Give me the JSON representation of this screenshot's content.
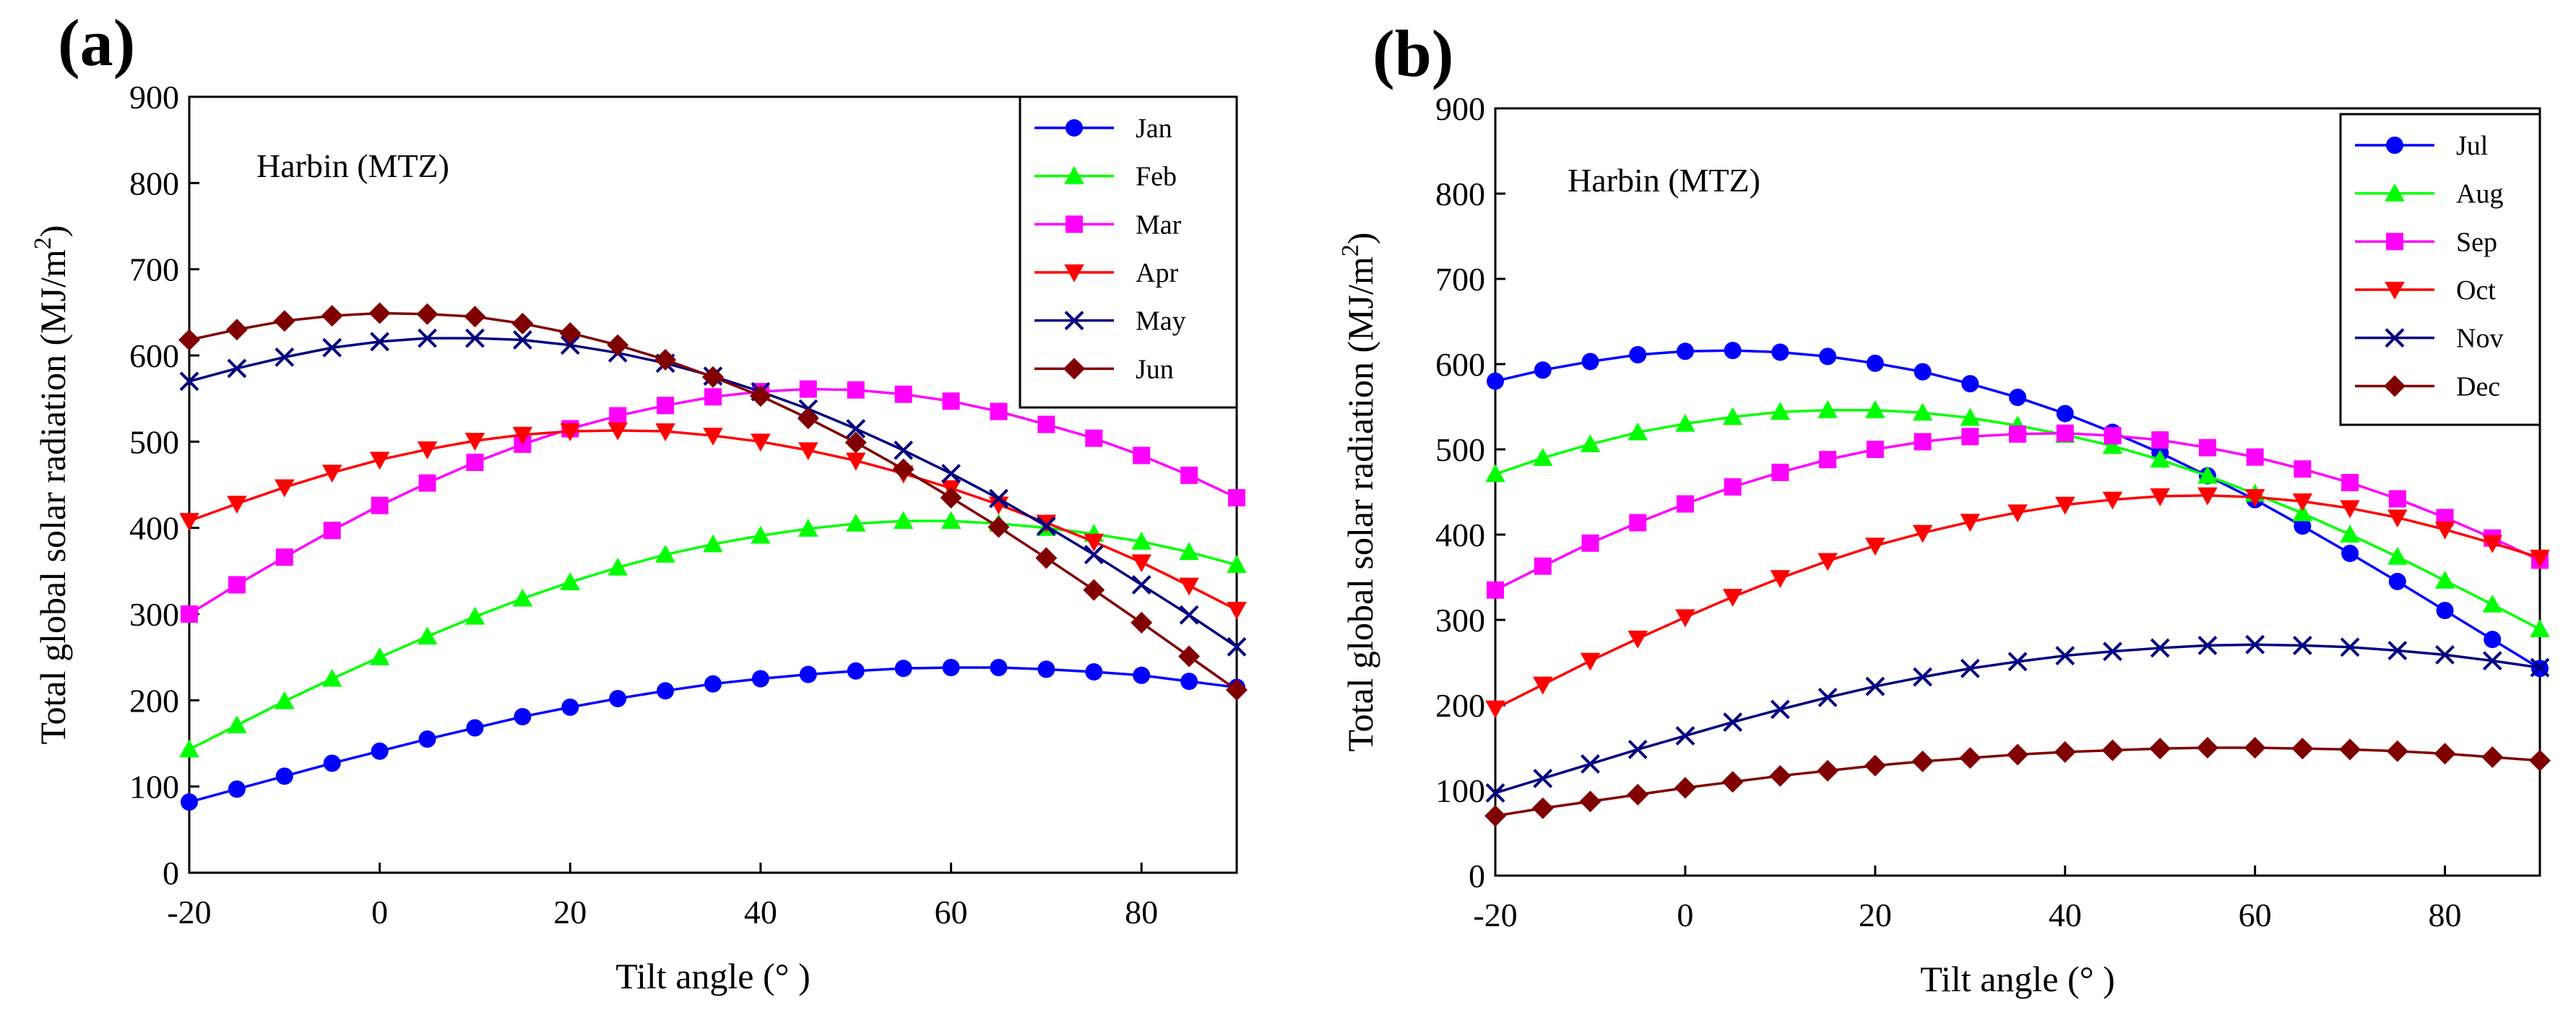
{
  "chart_data": [
    {
      "type": "line",
      "panel_label": "(a)",
      "annotation": "Harbin (MTZ)",
      "xlabel": "Tilt angle (° )",
      "ylabel": "Total global solar radiation (MJ/m",
      "ylabel_sup": "2",
      "ylabel_close": ")",
      "xlim": [
        -20,
        90
      ],
      "ylim": [
        0,
        900
      ],
      "xticks": [
        -20,
        0,
        20,
        40,
        60,
        80
      ],
      "yticks": [
        0,
        100,
        200,
        300,
        400,
        500,
        600,
        700,
        800,
        900
      ],
      "grid": false,
      "legend_position": "top-right",
      "x": [
        -20,
        -15,
        -10,
        -5,
        0,
        5,
        10,
        15,
        20,
        25,
        30,
        35,
        40,
        45,
        50,
        55,
        60,
        65,
        70,
        75,
        80,
        85,
        90
      ],
      "series": [
        {
          "name": "Jan",
          "color": "#0000ff",
          "marker": "circle",
          "values": [
            82,
            97,
            112,
            127,
            141,
            155,
            168,
            181,
            192,
            202,
            211,
            219,
            225,
            230,
            234,
            237,
            238,
            238,
            236,
            233,
            229,
            222,
            215
          ]
        },
        {
          "name": "Feb",
          "color": "#00ff00",
          "marker": "triangle-up",
          "values": [
            143,
            171,
            199,
            225,
            250,
            274,
            297,
            318,
            337,
            354,
            369,
            381,
            391,
            399,
            405,
            408,
            408,
            405,
            400,
            393,
            384,
            372,
            357
          ]
        },
        {
          "name": "Mar",
          "color": "#ff00ff",
          "marker": "square",
          "values": [
            300,
            334,
            366,
            397,
            426,
            452,
            476,
            497,
            515,
            530,
            542,
            552,
            558,
            561,
            560,
            555,
            547,
            535,
            520,
            504,
            484,
            461,
            435
          ]
        },
        {
          "name": "Apr",
          "color": "#ff0000",
          "marker": "triangle-down",
          "values": [
            408,
            428,
            447,
            464,
            479,
            491,
            501,
            508,
            512,
            513,
            512,
            507,
            500,
            490,
            478,
            463,
            446,
            427,
            406,
            384,
            360,
            333,
            305
          ]
        },
        {
          "name": "May",
          "color": "#000080",
          "marker": "cross",
          "values": [
            570,
            585,
            598,
            609,
            616,
            620,
            620,
            618,
            612,
            603,
            591,
            576,
            558,
            538,
            515,
            490,
            463,
            434,
            402,
            369,
            334,
            299,
            262
          ]
        },
        {
          "name": "Jun",
          "color": "#800000",
          "marker": "diamond",
          "values": [
            618,
            630,
            640,
            646,
            649,
            648,
            645,
            637,
            626,
            612,
            595,
            575,
            553,
            527,
            499,
            468,
            435,
            401,
            365,
            328,
            290,
            251,
            212
          ]
        }
      ]
    },
    {
      "type": "line",
      "panel_label": "(b)",
      "annotation": "Harbin (MTZ)",
      "xlabel": "Tilt angle (° )",
      "ylabel": "Total global solar radiation (MJ/m",
      "ylabel_sup": "2",
      "ylabel_close": ")",
      "xlim": [
        -20,
        90
      ],
      "ylim": [
        0,
        900
      ],
      "xticks": [
        -20,
        0,
        20,
        40,
        60,
        80
      ],
      "yticks": [
        0,
        100,
        200,
        300,
        400,
        500,
        600,
        700,
        800,
        900
      ],
      "grid": false,
      "legend_position": "top-right",
      "x": [
        -20,
        -15,
        -10,
        -5,
        0,
        5,
        10,
        15,
        20,
        25,
        30,
        35,
        40,
        45,
        50,
        55,
        60,
        65,
        70,
        75,
        80,
        85,
        90
      ],
      "series": [
        {
          "name": "Jul",
          "color": "#0000ff",
          "marker": "circle",
          "values": [
            580,
            593,
            603,
            611,
            615,
            616,
            614,
            609,
            601,
            591,
            577,
            561,
            542,
            520,
            496,
            469,
            441,
            410,
            378,
            345,
            311,
            277,
            243
          ]
        },
        {
          "name": "Aug",
          "color": "#00ff00",
          "marker": "triangle-up",
          "values": [
            471,
            490,
            506,
            520,
            530,
            538,
            544,
            546,
            546,
            543,
            537,
            528,
            517,
            504,
            488,
            469,
            448,
            425,
            400,
            374,
            346,
            318,
            289
          ]
        },
        {
          "name": "Sep",
          "color": "#ff00ff",
          "marker": "square",
          "values": [
            335,
            363,
            390,
            414,
            436,
            456,
            473,
            488,
            500,
            509,
            515,
            518,
            519,
            516,
            511,
            502,
            491,
            477,
            461,
            442,
            420,
            396,
            370
          ]
        },
        {
          "name": "Oct",
          "color": "#ff0000",
          "marker": "triangle-down",
          "values": [
            196,
            224,
            252,
            278,
            303,
            327,
            349,
            369,
            387,
            402,
            415,
            426,
            435,
            441,
            445,
            446,
            444,
            439,
            431,
            420,
            406,
            390,
            373
          ]
        },
        {
          "name": "Nov",
          "color": "#000080",
          "marker": "cross",
          "values": [
            97,
            114,
            131,
            148,
            164,
            180,
            195,
            209,
            222,
            233,
            243,
            251,
            258,
            263,
            267,
            270,
            271,
            270,
            268,
            264,
            259,
            252,
            244
          ]
        },
        {
          "name": "Dec",
          "color": "#800000",
          "marker": "diamond",
          "values": [
            70,
            79,
            87,
            95,
            103,
            110,
            117,
            123,
            129,
            134,
            138,
            142,
            145,
            147,
            149,
            150,
            150,
            149,
            148,
            146,
            143,
            139,
            135
          ]
        }
      ]
    }
  ]
}
